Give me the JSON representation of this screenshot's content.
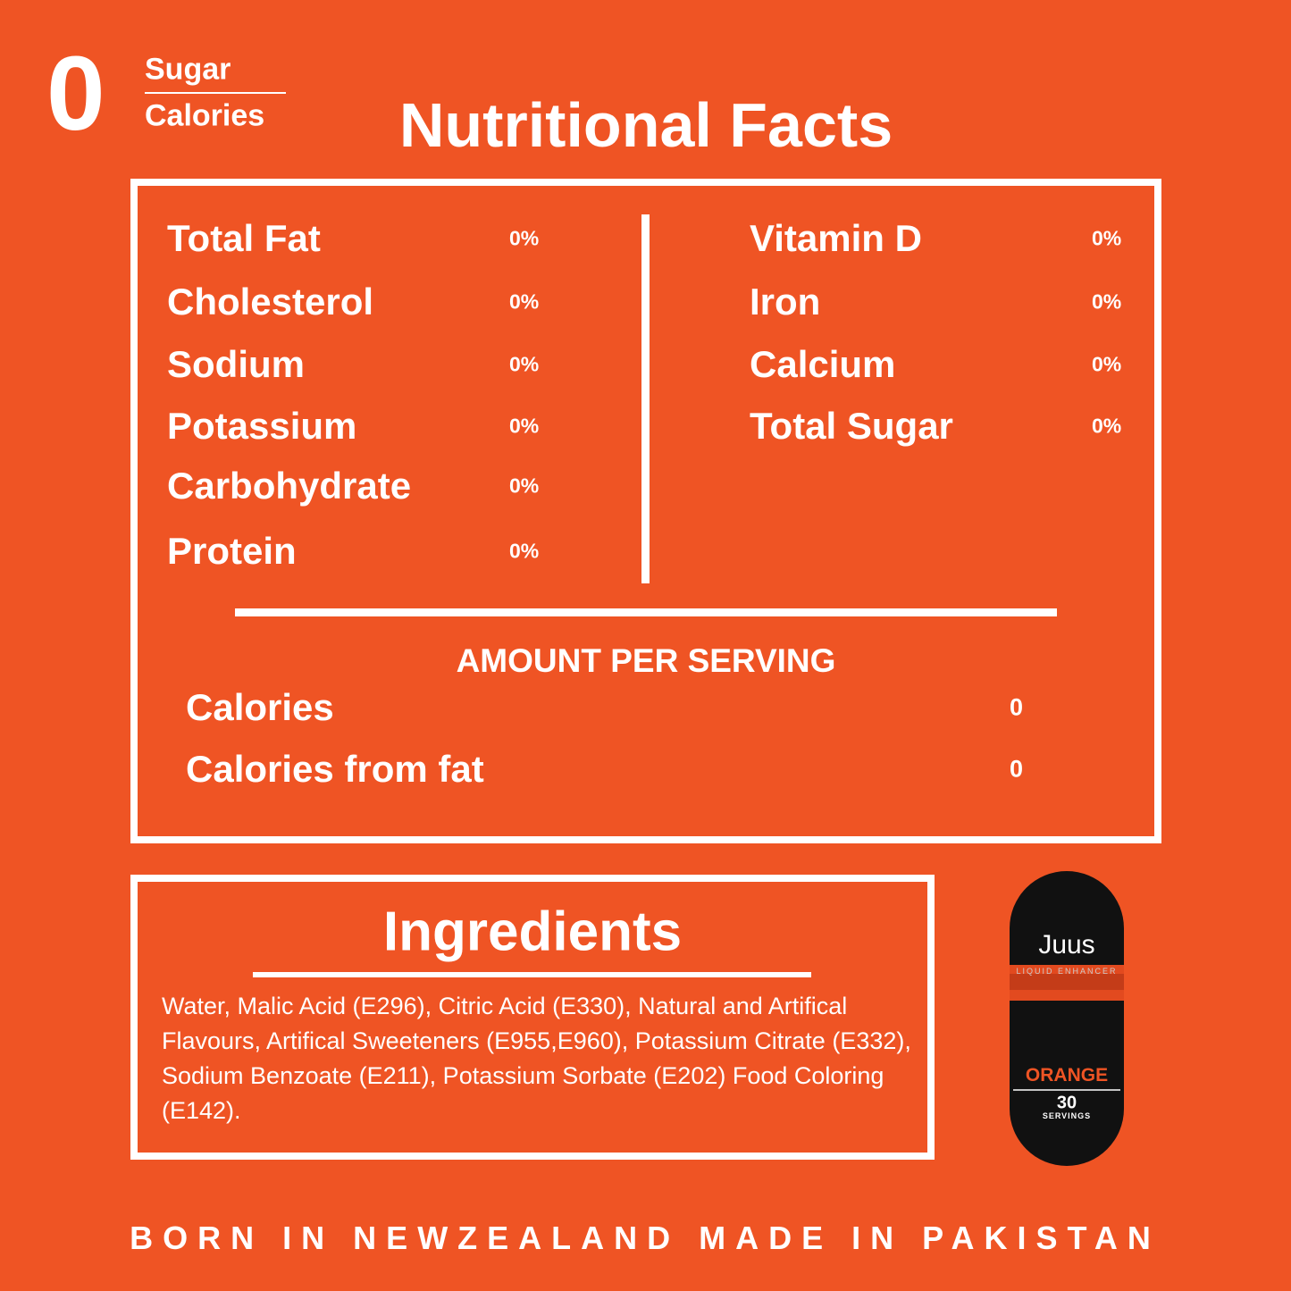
{
  "logo": {
    "number": "0",
    "line1": "Sugar",
    "line2": "Calories"
  },
  "title": "Nutritional Facts",
  "nutrients": {
    "left": [
      {
        "name": "Total Fat",
        "value": "0%"
      },
      {
        "name": "Cholesterol",
        "value": "0%"
      },
      {
        "name": "Sodium",
        "value": "0%"
      },
      {
        "name": "Potassium",
        "value": "0%"
      },
      {
        "name": "Carbohydrate",
        "value": "0%"
      },
      {
        "name": "Protein",
        "value": "0%"
      }
    ],
    "right": [
      {
        "name": "Vitamin D",
        "value": "0%"
      },
      {
        "name": "Iron",
        "value": "0%"
      },
      {
        "name": "Calcium",
        "value": "0%"
      },
      {
        "name": "Total Sugar",
        "value": "0%"
      }
    ]
  },
  "serving": {
    "heading": "AMOUNT PER SERVING",
    "rows": [
      {
        "name": "Calories",
        "value": "0"
      },
      {
        "name": "Calories from fat",
        "value": "0"
      }
    ]
  },
  "ingredients": {
    "title": "Ingredients",
    "text": "Water, Malic Acid (E296), Citric Acid (E330), Natural and Artifical Flavours, Artifical Sweeteners (E955,E960), Potassium Citrate (E332), Sodium Benzoate (E211), Potassium Sorbate (E202) Food Coloring (E142)."
  },
  "product": {
    "brand": "Juus",
    "subtitle": "LIQUID ENHANCER",
    "flavor": "ORANGE",
    "servings": "30",
    "servings_label": "SERVINGS"
  },
  "footer": "BORN IN NEWZEALAND MADE IN PAKISTAN"
}
